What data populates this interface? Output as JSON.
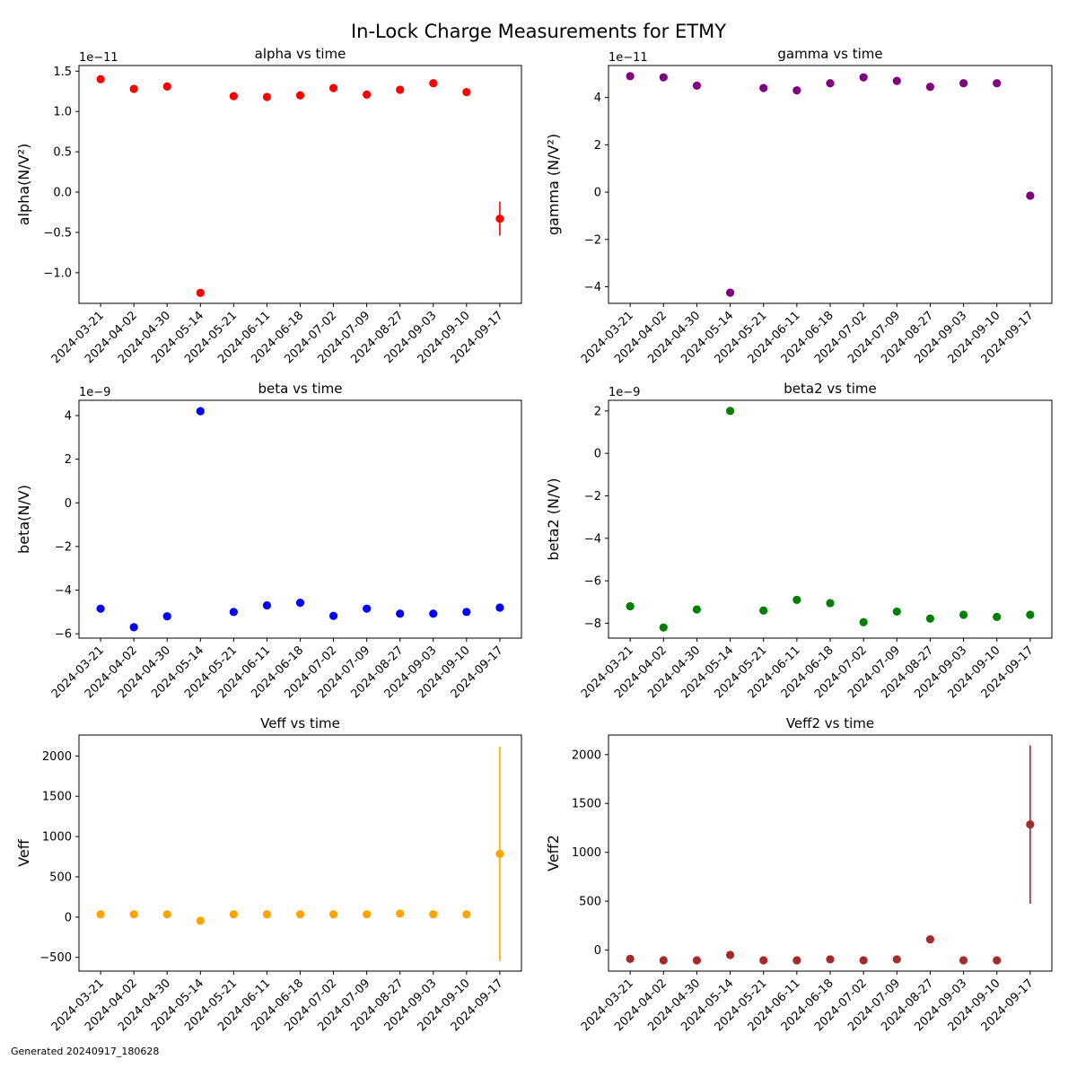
{
  "suptitle": "In-Lock Charge Measurements for ETMY",
  "footer": "Generated 20240917_180628",
  "chart_data": [
    {
      "type": "scatter",
      "title": "alpha vs time",
      "ylabel": "alpha(N/V²)",
      "scale_label": "1e−11",
      "color": "#ff0000",
      "categories": [
        "2024-03-21",
        "2024-04-02",
        "2024-04-30",
        "2024-05-14",
        "2024-05-21",
        "2024-06-11",
        "2024-06-18",
        "2024-07-02",
        "2024-07-09",
        "2024-08-27",
        "2024-09-03",
        "2024-09-10",
        "2024-09-17"
      ],
      "values": [
        1.4,
        1.28,
        1.31,
        -1.25,
        1.19,
        1.18,
        1.2,
        1.29,
        1.21,
        1.27,
        1.35,
        1.24,
        -0.33
      ],
      "errors": [
        0,
        0,
        0,
        0,
        0,
        0,
        0,
        0,
        0,
        0,
        0,
        0,
        0.21
      ],
      "ylim": [
        -1.38,
        1.57
      ],
      "yticks": [
        -1.0,
        -0.5,
        0.0,
        0.5,
        1.0,
        1.5
      ],
      "ytick_labels": [
        "−1.0",
        "−0.5",
        "0.0",
        "0.5",
        "1.0",
        "1.5"
      ]
    },
    {
      "type": "scatter",
      "title": "gamma vs time",
      "ylabel": "gamma (N/V²)",
      "scale_label": "1e−11",
      "color": "#800080",
      "categories": [
        "2024-03-21",
        "2024-04-02",
        "2024-04-30",
        "2024-05-14",
        "2024-05-21",
        "2024-06-11",
        "2024-06-18",
        "2024-07-02",
        "2024-07-09",
        "2024-08-27",
        "2024-09-03",
        "2024-09-10",
        "2024-09-17"
      ],
      "values": [
        4.9,
        4.85,
        4.5,
        -4.25,
        4.4,
        4.3,
        4.6,
        4.85,
        4.7,
        4.45,
        4.6,
        4.6,
        -0.15
      ],
      "errors": [
        0,
        0,
        0,
        0,
        0,
        0,
        0,
        0,
        0,
        0,
        0,
        0,
        0.1
      ],
      "ylim": [
        -4.7,
        5.35
      ],
      "yticks": [
        -4,
        -2,
        0,
        2,
        4
      ],
      "ytick_labels": [
        "−4",
        "−2",
        "0",
        "2",
        "4"
      ]
    },
    {
      "type": "scatter",
      "title": "beta vs time",
      "ylabel": "beta(N/V)",
      "scale_label": "1e−9",
      "color": "#0000ff",
      "categories": [
        "2024-03-21",
        "2024-04-02",
        "2024-04-30",
        "2024-05-14",
        "2024-05-21",
        "2024-06-11",
        "2024-06-18",
        "2024-07-02",
        "2024-07-09",
        "2024-08-27",
        "2024-09-03",
        "2024-09-10",
        "2024-09-17"
      ],
      "values": [
        -4.85,
        -5.7,
        -5.2,
        4.2,
        -5.0,
        -4.7,
        -4.58,
        -5.18,
        -4.85,
        -5.08,
        -5.08,
        -5.0,
        -4.8
      ],
      "errors": [
        0,
        0,
        0,
        0,
        0,
        0,
        0,
        0,
        0,
        0,
        0,
        0,
        0
      ],
      "ylim": [
        -6.2,
        4.7
      ],
      "yticks": [
        -6,
        -4,
        -2,
        0,
        2,
        4
      ],
      "ytick_labels": [
        "−6",
        "−4",
        "−2",
        "0",
        "2",
        "4"
      ]
    },
    {
      "type": "scatter",
      "title": "beta2 vs time",
      "ylabel": "beta2 (N/V)",
      "scale_label": "1e−9",
      "color": "#008000",
      "categories": [
        "2024-03-21",
        "2024-04-02",
        "2024-04-30",
        "2024-05-14",
        "2024-05-21",
        "2024-06-11",
        "2024-06-18",
        "2024-07-02",
        "2024-07-09",
        "2024-08-27",
        "2024-09-03",
        "2024-09-10",
        "2024-09-17"
      ],
      "values": [
        -7.2,
        -8.2,
        -7.35,
        2.0,
        -7.4,
        -6.9,
        -7.05,
        -7.95,
        -7.45,
        -7.78,
        -7.6,
        -7.7,
        -7.6
      ],
      "errors": [
        0,
        0,
        0,
        0,
        0,
        0,
        0,
        0,
        0,
        0,
        0,
        0,
        0
      ],
      "ylim": [
        -8.7,
        2.5
      ],
      "yticks": [
        -8,
        -6,
        -4,
        -2,
        0,
        2
      ],
      "ytick_labels": [
        "−8",
        "−6",
        "−4",
        "−2",
        "0",
        "2"
      ]
    },
    {
      "type": "scatter",
      "title": "Veff vs time",
      "ylabel": "Veff",
      "scale_label": "",
      "color": "#ffa500",
      "categories": [
        "2024-03-21",
        "2024-04-02",
        "2024-04-30",
        "2024-05-14",
        "2024-05-21",
        "2024-06-11",
        "2024-06-18",
        "2024-07-02",
        "2024-07-09",
        "2024-08-27",
        "2024-09-03",
        "2024-09-10",
        "2024-09-17"
      ],
      "values": [
        35,
        35,
        35,
        -45,
        35,
        35,
        35,
        35,
        35,
        45,
        35,
        35,
        785
      ],
      "errors": [
        0,
        0,
        0,
        0,
        0,
        0,
        0,
        0,
        0,
        0,
        0,
        0,
        1330
      ],
      "ylim": [
        -670,
        2260
      ],
      "yticks": [
        -500,
        0,
        500,
        1000,
        1500,
        2000
      ],
      "ytick_labels": [
        "−500",
        "0",
        "500",
        "1000",
        "1500",
        "2000"
      ]
    },
    {
      "type": "scatter",
      "title": "Veff2 vs time",
      "ylabel": "Veff2",
      "scale_label": "",
      "color": "#a52a2a",
      "categories": [
        "2024-03-21",
        "2024-04-02",
        "2024-04-30",
        "2024-05-14",
        "2024-05-21",
        "2024-06-11",
        "2024-06-18",
        "2024-07-02",
        "2024-07-09",
        "2024-08-27",
        "2024-09-03",
        "2024-09-10",
        "2024-09-17"
      ],
      "values": [
        -90,
        -105,
        -105,
        -50,
        -105,
        -105,
        -95,
        -105,
        -95,
        110,
        -105,
        -105,
        1285
      ],
      "errors": [
        0,
        0,
        0,
        0,
        0,
        0,
        0,
        0,
        0,
        0,
        0,
        0,
        810
      ],
      "ylim": [
        -215,
        2200
      ],
      "yticks": [
        0,
        500,
        1000,
        1500,
        2000
      ],
      "ytick_labels": [
        "0",
        "500",
        "1000",
        "1500",
        "2000"
      ]
    }
  ]
}
